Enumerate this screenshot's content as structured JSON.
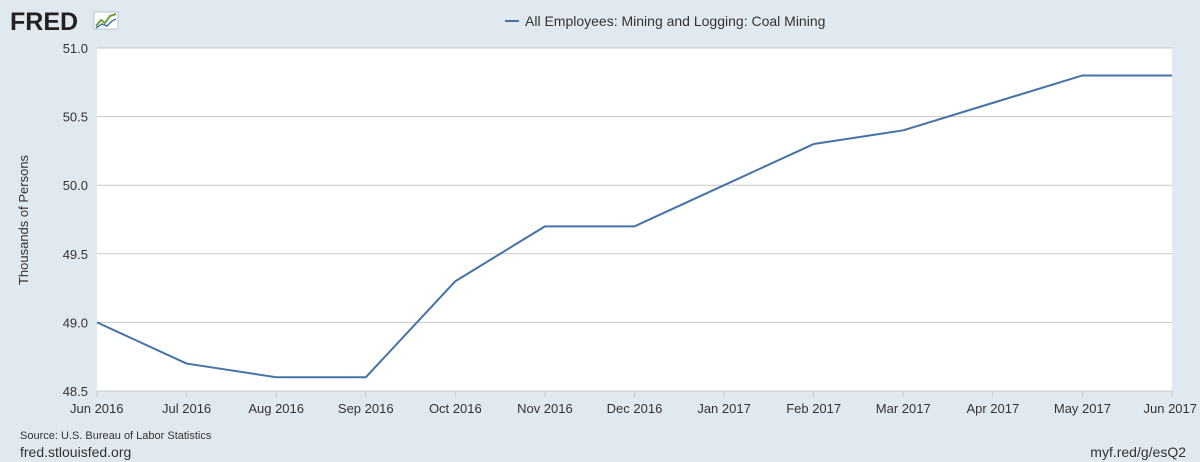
{
  "header": {
    "logo_text": "FRED"
  },
  "footer": {
    "source": "Source: U.S. Bureau of Labor Statistics",
    "site": "fred.stlouisfed.org",
    "short_url": "myf.red/g/esQ2"
  },
  "colors": {
    "background": "#e1e9f0",
    "plot_background": "#ffffff",
    "series": "#4572a7",
    "grid": "#c8c8c8"
  },
  "chart_data": {
    "type": "line",
    "title": "",
    "xlabel": "",
    "ylabel": "Thousands of Persons",
    "ylim": [
      48.5,
      51.0
    ],
    "yticks": [
      "48.5",
      "49.0",
      "49.5",
      "50.0",
      "50.5",
      "51.0"
    ],
    "x": [
      "Jun 2016",
      "Jul 2016",
      "Aug 2016",
      "Sep 2016",
      "Oct 2016",
      "Nov 2016",
      "Dec 2016",
      "Jan 2017",
      "Feb 2017",
      "Mar 2017",
      "Apr 2017",
      "May 2017",
      "Jun 2017"
    ],
    "grid": true,
    "legend_position": "top-center",
    "series": [
      {
        "name": "All Employees: Mining and Logging: Coal Mining",
        "values": [
          49.0,
          48.7,
          48.6,
          48.6,
          49.3,
          49.7,
          49.7,
          50.0,
          50.3,
          50.4,
          50.6,
          50.8,
          50.8
        ]
      }
    ]
  }
}
